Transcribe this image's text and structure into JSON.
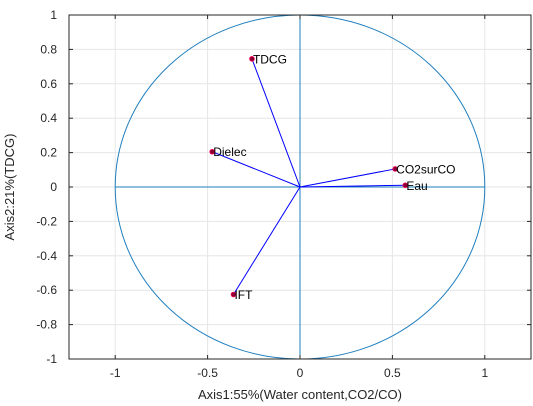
{
  "chart_data": {
    "type": "scatter",
    "title": "",
    "xlabel": "Axis1:55%(Water content,CO2/CO)",
    "ylabel": "Axis2:21%(TDCG)",
    "xlim": [
      -1.25,
      1.25
    ],
    "ylim": [
      -1,
      1
    ],
    "xticks": [
      -1,
      -0.5,
      0,
      0.5,
      1
    ],
    "xtick_labels": [
      "-1",
      "-0.5",
      "0",
      "0.5",
      "1"
    ],
    "yticks": [
      -1,
      -0.8,
      -0.6,
      -0.4,
      -0.2,
      0,
      0.2,
      0.4,
      0.6,
      0.8,
      1
    ],
    "ytick_labels": [
      "-1",
      "-0.8",
      "-0.6",
      "-0.4",
      "-0.2",
      "0",
      "0.2",
      "0.4",
      "0.6",
      "0.8",
      "1"
    ],
    "grid": true,
    "unit_circle": true,
    "points": [
      {
        "label": "TDCG",
        "x": -0.26,
        "y": 0.745
      },
      {
        "label": "Dielec",
        "x": -0.475,
        "y": 0.205
      },
      {
        "label": "CO2surCO",
        "x": 0.515,
        "y": 0.105
      },
      {
        "label": "Eau",
        "x": 0.57,
        "y": 0.01
      },
      {
        "label": "IFT",
        "x": -0.36,
        "y": -0.625
      }
    ],
    "colors": {
      "vector": "#0000ff",
      "marker_fill": "#8b0035",
      "marker_edge": "#ff0055",
      "circle": "#1f7fbf",
      "grid": "#e6e6e6",
      "frame": "#262626"
    }
  }
}
